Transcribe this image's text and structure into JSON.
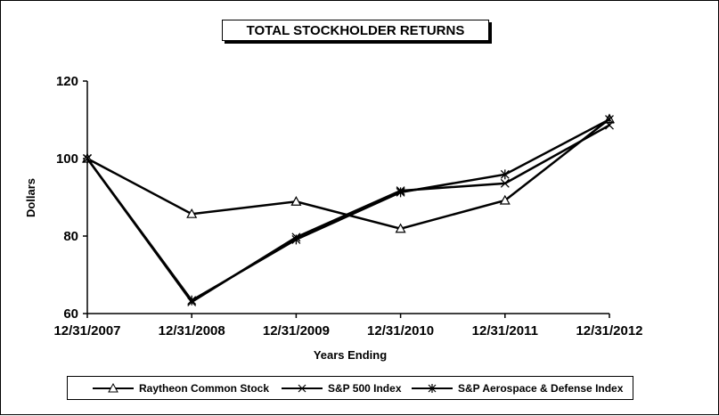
{
  "chart_data": {
    "type": "line",
    "title": "TOTAL STOCKHOLDER RETURNS",
    "xlabel": "Years Ending",
    "ylabel": "Dollars",
    "categories": [
      "12/31/2007",
      "12/31/2008",
      "12/31/2009",
      "12/31/2010",
      "12/31/2011",
      "12/31/2012"
    ],
    "ylim": [
      60,
      120
    ],
    "yticks": [
      60,
      80,
      100,
      120
    ],
    "grid": false,
    "legend_position": "bottom",
    "series": [
      {
        "name": "Raytheon Common Stock",
        "marker": "triangle",
        "color": "#000000",
        "values": [
          100,
          85.7,
          88.9,
          81.9,
          89.2,
          110.2
        ]
      },
      {
        "name": "S&P 500 Index",
        "marker": "x",
        "color": "#000000",
        "values": [
          100,
          63.0,
          79.7,
          91.7,
          93.6,
          108.6
        ]
      },
      {
        "name": "S&P Aerospace & Defense Index",
        "marker": "star",
        "color": "#000000",
        "values": [
          100,
          63.4,
          79.1,
          91.3,
          95.9,
          110.1
        ]
      }
    ]
  }
}
